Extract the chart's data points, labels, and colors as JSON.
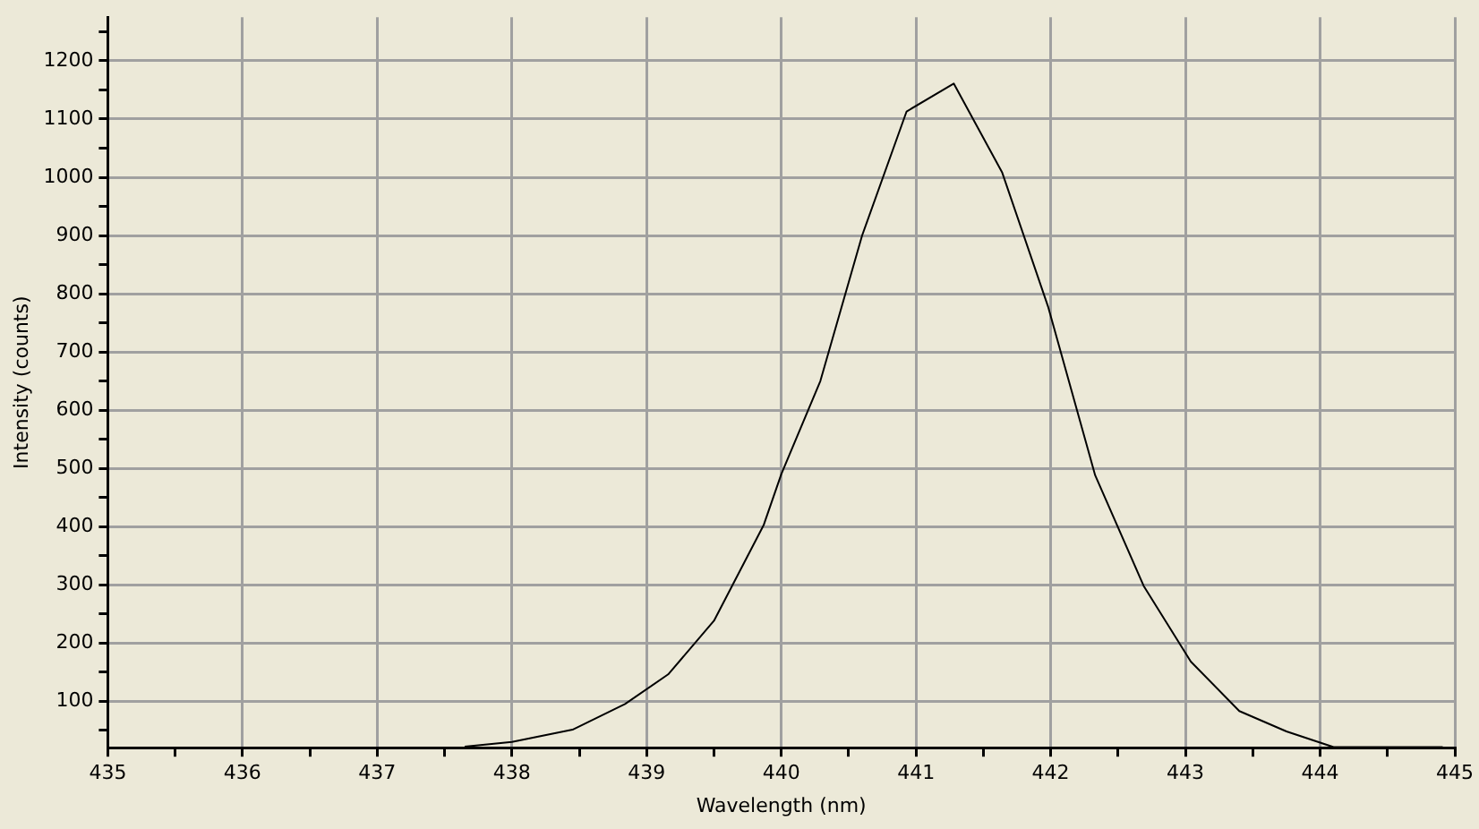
{
  "chart_data": {
    "type": "line",
    "xlabel": "Wavelength (nm)",
    "ylabel": "Intensity (counts)",
    "x": [
      437.65,
      438.0,
      438.45,
      438.84,
      439.16,
      439.5,
      439.87,
      440.0,
      440.29,
      440.6,
      440.93,
      441.28,
      441.64,
      441.98,
      442.33,
      442.69,
      443.04,
      443.4,
      443.75,
      444.1,
      444.91
    ],
    "series": [
      {
        "color": "#000000",
        "values": [
          22,
          30,
          51,
          95,
          146,
          238,
          403,
          490,
          650,
          900,
          1113,
          1161,
          1008,
          778,
          488,
          298,
          168,
          83,
          48,
          21,
          21
        ]
      }
    ],
    "xlim": [
      435,
      445
    ],
    "xticks": [
      435,
      {
        "value": 435.5,
        "label": null
      },
      436,
      {
        "value": 436.5,
        "label": null
      },
      437,
      {
        "value": 437.5,
        "label": null
      },
      438,
      {
        "value": 438.5,
        "label": null
      },
      439,
      {
        "value": 439.5,
        "label": null
      },
      440,
      {
        "value": 440.5,
        "label": null
      },
      441,
      {
        "value": 441.5,
        "label": null
      },
      442,
      {
        "value": 442.5,
        "label": null
      },
      443,
      {
        "value": 443.5,
        "label": null
      },
      444,
      {
        "value": 444.5,
        "label": null
      },
      445
    ],
    "ylim": [
      20,
      1275
    ],
    "yticks": [
      {
        "value": 50,
        "label": null
      },
      100,
      {
        "value": 150,
        "label": null
      },
      200,
      {
        "value": 250,
        "label": null
      },
      300,
      {
        "value": 350,
        "label": null
      },
      400,
      {
        "value": 450,
        "label": null
      },
      500,
      {
        "value": 550,
        "label": null
      },
      600,
      {
        "value": 650,
        "label": null
      },
      700,
      {
        "value": 750,
        "label": null
      },
      800,
      {
        "value": 850,
        "label": null
      },
      900,
      {
        "value": 950,
        "label": null
      },
      1000,
      {
        "value": 1050,
        "label": null
      },
      1100,
      {
        "value": 1150,
        "label": null
      },
      1200,
      {
        "value": 1250,
        "label": null
      }
    ],
    "grid": true,
    "legend": false,
    "marker": "none",
    "line_style": "solid"
  }
}
